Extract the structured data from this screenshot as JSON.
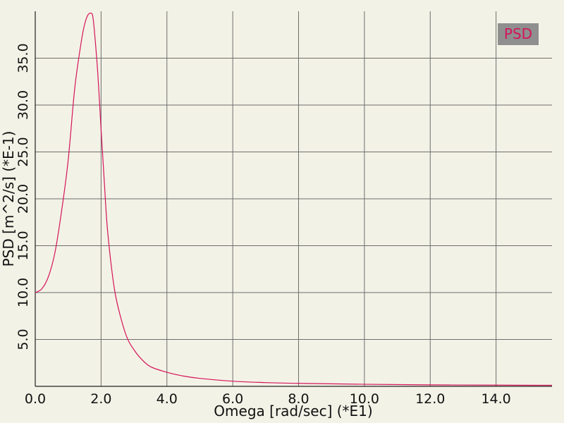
{
  "chart_data": {
    "type": "line",
    "title": "",
    "xlabel": "Omega [rad/sec] (*E1)",
    "ylabel": "PSD [m^2/s] (*E-1)",
    "xlim": [
      0,
      15.7
    ],
    "ylim": [
      0,
      40
    ],
    "x_ticks": [
      0,
      2,
      4,
      6,
      8,
      10,
      12,
      14
    ],
    "x_tick_labels": [
      "0.0",
      "2.0",
      "4.0",
      "6.0",
      "8.0",
      "10.0",
      "12.0",
      "14.0"
    ],
    "y_ticks": [
      5,
      10,
      15,
      20,
      25,
      30,
      35
    ],
    "y_tick_labels": [
      "5.0",
      "10.0",
      "15.0",
      "20.0",
      "25.0",
      "30.0",
      "35.0"
    ],
    "grid": true,
    "legend_position": "top-right",
    "series": [
      {
        "name": "PSD",
        "color": "#d4145a",
        "x": [
          0.0,
          0.2,
          0.4,
          0.6,
          0.8,
          1.0,
          1.2,
          1.4,
          1.5,
          1.6,
          1.7,
          1.75,
          1.8,
          1.9,
          2.0,
          2.1,
          2.2,
          2.4,
          2.6,
          2.8,
          3.0,
          3.2,
          3.5,
          4.0,
          4.5,
          5.0,
          6.0,
          7.0,
          8.0,
          10.0,
          12.0,
          14.0,
          15.7
        ],
        "y": [
          10.0,
          10.4,
          11.7,
          14.3,
          18.7,
          24.1,
          31.8,
          36.8,
          38.6,
          39.6,
          39.8,
          39.4,
          37.8,
          33.4,
          27.4,
          21.7,
          16.5,
          10.5,
          7.3,
          5.1,
          3.9,
          3.0,
          2.1,
          1.5,
          1.1,
          0.85,
          0.55,
          0.4,
          0.32,
          0.22,
          0.16,
          0.13,
          0.11
        ]
      }
    ]
  }
}
